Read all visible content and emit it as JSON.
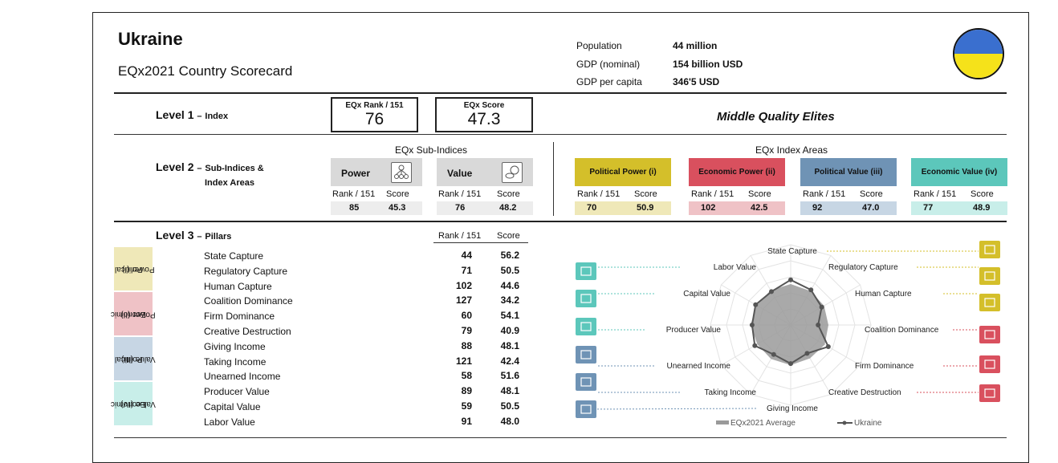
{
  "header": {
    "country": "Ukraine",
    "subtitle": "EQx2021 Country Scorecard",
    "stats": [
      {
        "label": "Population",
        "value": "44  million"
      },
      {
        "label": "GDP (nominal)",
        "value": "154  billion USD"
      },
      {
        "label": "GDP per capita",
        "value": "346'5  USD"
      }
    ],
    "flag_colors": {
      "top": "#3a6fcf",
      "bottom": "#f5e21a"
    }
  },
  "level1": {
    "label": "Level 1",
    "dash": "–",
    "sublabel": "Index",
    "rank_caption": "EQx Rank / 151",
    "rank": "76",
    "score_caption": "EQx Score",
    "score": "47.3",
    "quality": "Middle Quality Elites"
  },
  "level2": {
    "label": "Level 2",
    "dash": "–",
    "sublabel_1": "Sub-Indices &",
    "sublabel_2": "Index Areas",
    "subindices_title": "EQx Sub-Indices",
    "areas_title": "EQx Index Areas",
    "rank_header": "Rank / 151",
    "score_header": "Score",
    "subindices": [
      {
        "name": "Power",
        "icon": "network-icon",
        "rank": "85",
        "score": "45.3"
      },
      {
        "name": "Value",
        "icon": "coins-icon",
        "rank": "76",
        "score": "48.2"
      }
    ],
    "areas": [
      {
        "name": "Political Power (i)",
        "rank": "70",
        "score": "50.9",
        "color": "#d4bf2a",
        "light": "#efe8b8"
      },
      {
        "name": "Economic Power (ii)",
        "rank": "102",
        "score": "42.5",
        "color": "#d9505e",
        "light": "#efc2c6"
      },
      {
        "name": "Political Value (iii)",
        "rank": "92",
        "score": "47.0",
        "color": "#6f93b5",
        "light": "#c7d6e4"
      },
      {
        "name": "Economic Value (iv)",
        "rank": "77",
        "score": "48.9",
        "color": "#5cc7bb",
        "light": "#c8eee9"
      }
    ]
  },
  "level3": {
    "label": "Level 3",
    "dash": "–",
    "sublabel": "Pillars",
    "rank_header": "Rank / 151",
    "score_header": "Score",
    "bands": [
      {
        "line1": "Political",
        "line2": "Power (I)",
        "color": "#efe8b8"
      },
      {
        "line1": "Economic",
        "line2": "Power (II)",
        "color": "#efc2c6"
      },
      {
        "line1": "Political",
        "line2": "Value (III)",
        "color": "#c7d6e4"
      },
      {
        "line1": "Economic",
        "line2": "Value (IV)",
        "color": "#c8eee9"
      }
    ],
    "pillars": [
      {
        "name": "State Capture",
        "rank": "44",
        "score": "56.2"
      },
      {
        "name": "Regulatory Capture",
        "rank": "71",
        "score": "50.5"
      },
      {
        "name": "Human Capture",
        "rank": "102",
        "score": "44.6"
      },
      {
        "name": "Coalition Dominance",
        "rank": "127",
        "score": "34.2"
      },
      {
        "name": "Firm Dominance",
        "rank": "60",
        "score": "54.1"
      },
      {
        "name": "Creative Destruction",
        "rank": "79",
        "score": "40.9"
      },
      {
        "name": "Giving Income",
        "rank": "88",
        "score": "48.1"
      },
      {
        "name": "Taking Income",
        "rank": "121",
        "score": "42.4"
      },
      {
        "name": "Unearned Income",
        "rank": "58",
        "score": "51.6"
      },
      {
        "name": "Producer Value",
        "rank": "89",
        "score": "48.1"
      },
      {
        "name": "Capital Value",
        "rank": "59",
        "score": "50.5"
      },
      {
        "name": "Labor Value",
        "rank": "91",
        "score": "48.0"
      }
    ]
  },
  "chart_data": {
    "type": "radar",
    "axes": [
      "State Capture",
      "Regulatory Capture",
      "Human Capture",
      "Coalition Dominance",
      "Firm Dominance",
      "Creative Destruction",
      "Giving Income",
      "Taking Income",
      "Unearned Income",
      "Producer Value",
      "Capital Value",
      "Labor Value"
    ],
    "series": [
      {
        "name": "EQx2021 Average",
        "values": [
          51,
          49,
          48,
          47,
          49,
          48,
          50,
          49,
          48,
          50,
          49,
          50
        ]
      },
      {
        "name": "Ukraine",
        "values": [
          56.2,
          50.5,
          44.6,
          34.2,
          54.1,
          40.9,
          48.1,
          42.4,
          51.6,
          48.1,
          50.5,
          48.0
        ]
      }
    ],
    "rlim": [
      0,
      100
    ],
    "legend_position": "bottom"
  }
}
